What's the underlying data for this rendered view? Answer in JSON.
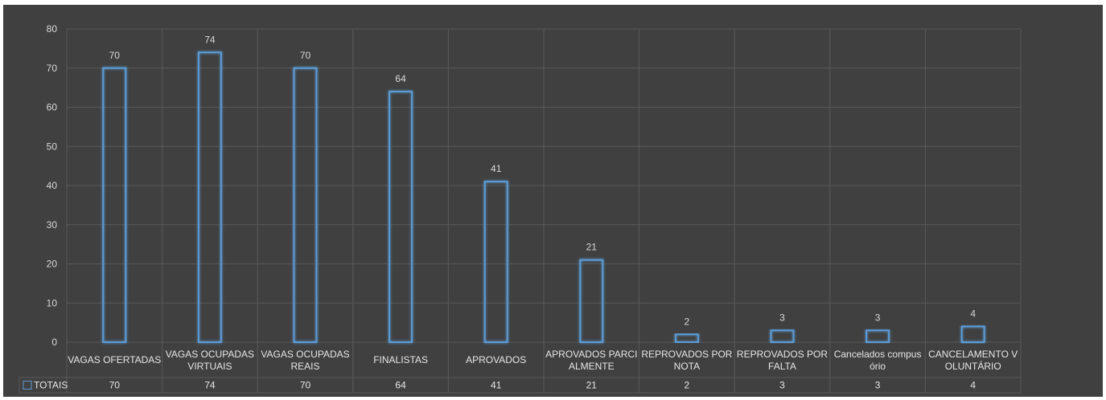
{
  "chart_data": {
    "type": "bar",
    "categories": [
      "VAGAS OFERTADAS",
      "VAGAS  OCUPADAS VIRTUAIS",
      "VAGAS  OCUPADAS REAIS",
      "FINALISTAS",
      "APROVADOS",
      "APROVADOS PARCI ALMENTE",
      "REPROVADOS POR NOTA",
      "REPROVADOS POR FALTA",
      "Cancelados compus ório",
      "CANCELAMENTO V OLUNTÁRIO"
    ],
    "category_lines": [
      [
        "VAGAS OFERTADAS"
      ],
      [
        "VAGAS  OCUPADAS",
        "VIRTUAIS"
      ],
      [
        "VAGAS  OCUPADAS",
        "REAIS"
      ],
      [
        "FINALISTAS"
      ],
      [
        "APROVADOS"
      ],
      [
        "APROVADOS PARCI",
        "ALMENTE"
      ],
      [
        "REPROVADOS POR",
        "NOTA"
      ],
      [
        "REPROVADOS POR",
        "FALTA"
      ],
      [
        "Cancelados compus",
        "ório"
      ],
      [
        "CANCELAMENTO V",
        "OLUNTÁRIO"
      ]
    ],
    "series": [
      {
        "name": "TOTAIS",
        "values": [
          70,
          74,
          70,
          64,
          41,
          21,
          2,
          3,
          3,
          4
        ]
      }
    ],
    "ylim": [
      0,
      80
    ],
    "yticks": [
      0,
      10,
      20,
      30,
      40,
      50,
      60,
      70,
      80
    ],
    "grid": true,
    "data_labels": true,
    "data_table": true,
    "legend": "data-table",
    "bar_style": "outline-glow",
    "colors": {
      "background": "#404040",
      "bar_outline": "#5b9bd5",
      "grid": "#595959",
      "text": "#d9d9d9"
    }
  }
}
